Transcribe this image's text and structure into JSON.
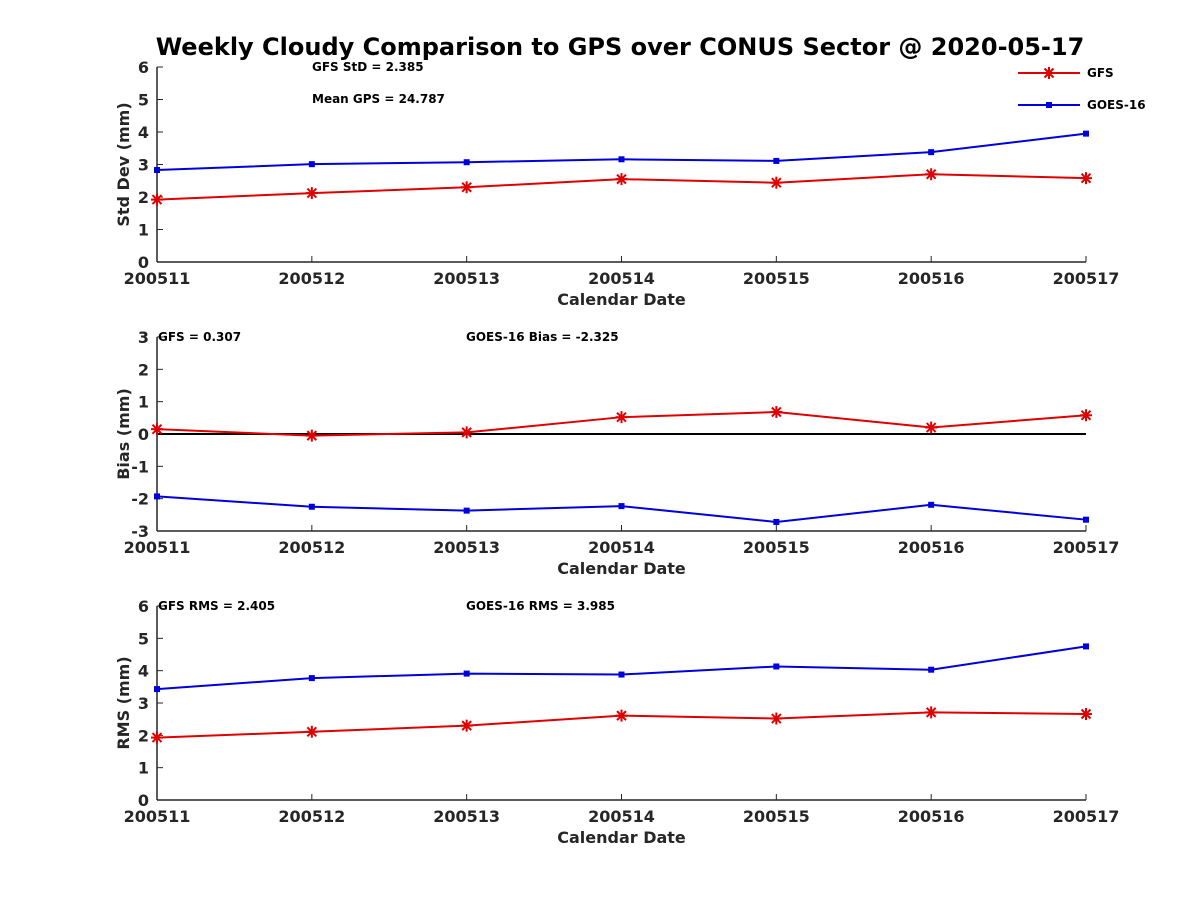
{
  "title": "Weekly Cloudy Comparison to GPS over CONUS Sector @ 2020-05-17",
  "colors": {
    "GFS": "#e00000",
    "GOES-16": "#0000dd",
    "zero_line": "#000000"
  },
  "legend": {
    "placement": "top-right",
    "entries": [
      "GFS",
      "GOES-16"
    ]
  },
  "chart_data": [
    {
      "type": "line",
      "ylabel": "Std Dev (mm)",
      "xlabel": "Calendar Date",
      "categories": [
        "200511",
        "200512",
        "200513",
        "200514",
        "200515",
        "200516",
        "200517"
      ],
      "ylim": [
        0,
        6
      ],
      "yticks": [
        "0",
        "1",
        "2",
        "3",
        "4",
        "5",
        "6"
      ],
      "annotations": [
        "GFS StD = 2.385",
        "Mean GPS = 24.787"
      ],
      "series": [
        {
          "name": "GFS",
          "marker": "asterisk",
          "values": [
            1.92,
            2.12,
            2.3,
            2.55,
            2.44,
            2.7,
            2.58
          ]
        },
        {
          "name": "GOES-16",
          "marker": "square",
          "values": [
            2.83,
            3.01,
            3.07,
            3.16,
            3.11,
            3.38,
            3.95
          ]
        }
      ],
      "zero_line": false
    },
    {
      "type": "line",
      "ylabel": "Bias (mm)",
      "xlabel": "Calendar Date",
      "categories": [
        "200511",
        "200512",
        "200513",
        "200514",
        "200515",
        "200516",
        "200517"
      ],
      "ylim": [
        -3,
        3
      ],
      "yticks": [
        "-3",
        "-2",
        "-1",
        "0",
        "1",
        "2",
        "3"
      ],
      "annotations": [
        "GFS = 0.307",
        "GOES-16 Bias  = -2.325"
      ],
      "series": [
        {
          "name": "GFS",
          "marker": "asterisk",
          "values": [
            0.15,
            -0.05,
            0.05,
            0.52,
            0.68,
            0.2,
            0.58
          ]
        },
        {
          "name": "GOES-16",
          "marker": "square",
          "values": [
            -1.93,
            -2.25,
            -2.37,
            -2.23,
            -2.72,
            -2.19,
            -2.65
          ]
        }
      ],
      "zero_line": true
    },
    {
      "type": "line",
      "ylabel": "RMS (mm)",
      "xlabel": "Calendar Date",
      "categories": [
        "200511",
        "200512",
        "200513",
        "200514",
        "200515",
        "200516",
        "200517"
      ],
      "ylim": [
        0,
        6
      ],
      "yticks": [
        "0",
        "1",
        "2",
        "3",
        "4",
        "5",
        "6"
      ],
      "annotations": [
        "GFS RMS = 2.405",
        "GOES-16 RMS = 3.985"
      ],
      "series": [
        {
          "name": "GFS",
          "marker": "asterisk",
          "values": [
            1.93,
            2.11,
            2.3,
            2.61,
            2.52,
            2.71,
            2.66
          ]
        },
        {
          "name": "GOES-16",
          "marker": "square",
          "values": [
            3.43,
            3.77,
            3.91,
            3.88,
            4.13,
            4.03,
            4.75
          ]
        }
      ],
      "zero_line": false
    }
  ]
}
